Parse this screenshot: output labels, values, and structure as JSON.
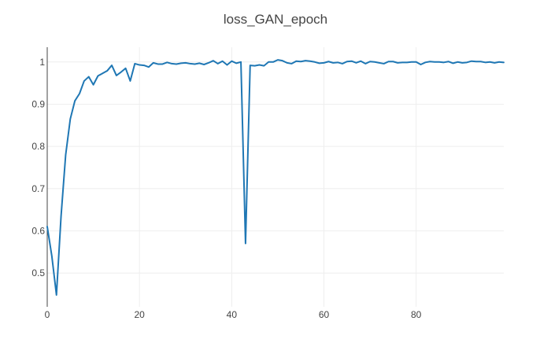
{
  "chart_data": {
    "type": "line",
    "title": "loss_GAN_epoch",
    "xlabel": "",
    "ylabel": "",
    "xlim": [
      0,
      99
    ],
    "ylim": [
      0.42,
      1.035
    ],
    "x_ticks": [
      0,
      20,
      40,
      60,
      80
    ],
    "y_ticks": [
      0.5,
      0.6,
      0.7,
      0.8,
      0.9,
      1
    ],
    "x_tick_labels": [
      "0",
      "20",
      "40",
      "60",
      "80"
    ],
    "y_tick_labels": [
      "0.5",
      "0.6",
      "0.7",
      "0.8",
      "0.9",
      "1"
    ],
    "grid": true,
    "legend": "none",
    "color": "#1f77b4",
    "series": [
      {
        "x": [
          0,
          1,
          2,
          3,
          4,
          5,
          6,
          7,
          8,
          9,
          10,
          11,
          12,
          13,
          14,
          15,
          16,
          17,
          18,
          19,
          20,
          21,
          22,
          23,
          24,
          25,
          26,
          27,
          28,
          29,
          30,
          31,
          32,
          33,
          34,
          35,
          36,
          37,
          38,
          39,
          40,
          41,
          42,
          43,
          44,
          45,
          46,
          47,
          48,
          49,
          50,
          51,
          52,
          53,
          54,
          55,
          56,
          57,
          58,
          59,
          60,
          61,
          62,
          63,
          64,
          65,
          66,
          67,
          68,
          69,
          70,
          71,
          72,
          73,
          74,
          75,
          76,
          77,
          78,
          79,
          80,
          81,
          82,
          83,
          84,
          85,
          86,
          87,
          88,
          89,
          90,
          91,
          92,
          93,
          94,
          95,
          96,
          97,
          98,
          99
        ],
        "values": [
          0.61,
          0.54,
          0.448,
          0.635,
          0.78,
          0.865,
          0.908,
          0.925,
          0.955,
          0.965,
          0.946,
          0.967,
          0.973,
          0.979,
          0.992,
          0.968,
          0.976,
          0.985,
          0.955,
          0.996,
          0.993,
          0.992,
          0.988,
          0.998,
          0.995,
          0.995,
          0.999,
          0.996,
          0.995,
          0.997,
          0.998,
          0.996,
          0.995,
          0.997,
          0.994,
          0.998,
          1.003,
          0.996,
          1.002,
          0.993,
          1.002,
          0.997,
          1.0,
          0.57,
          0.992,
          0.991,
          0.993,
          0.991,
          1.0,
          1.0,
          1.005,
          1.003,
          0.998,
          0.996,
          1.002,
          1.001,
          1.003,
          1.002,
          1.0,
          0.997,
          0.998,
          1.001,
          0.998,
          0.999,
          0.996,
          1.001,
          1.002,
          0.998,
          1.002,
          0.996,
          1.001,
          1.0,
          0.998,
          0.996,
          1.001,
          1.001,
          0.998,
          0.999,
          0.999,
          1.0,
          1.0,
          0.994,
          0.999,
          1.001,
          1.0,
          1.0,
          0.999,
          1.001,
          0.997,
          1.0,
          0.998,
          0.999,
          1.002,
          1.001,
          1.001,
          0.999,
          1.0,
          0.998,
          1.0,
          0.999
        ]
      }
    ]
  }
}
